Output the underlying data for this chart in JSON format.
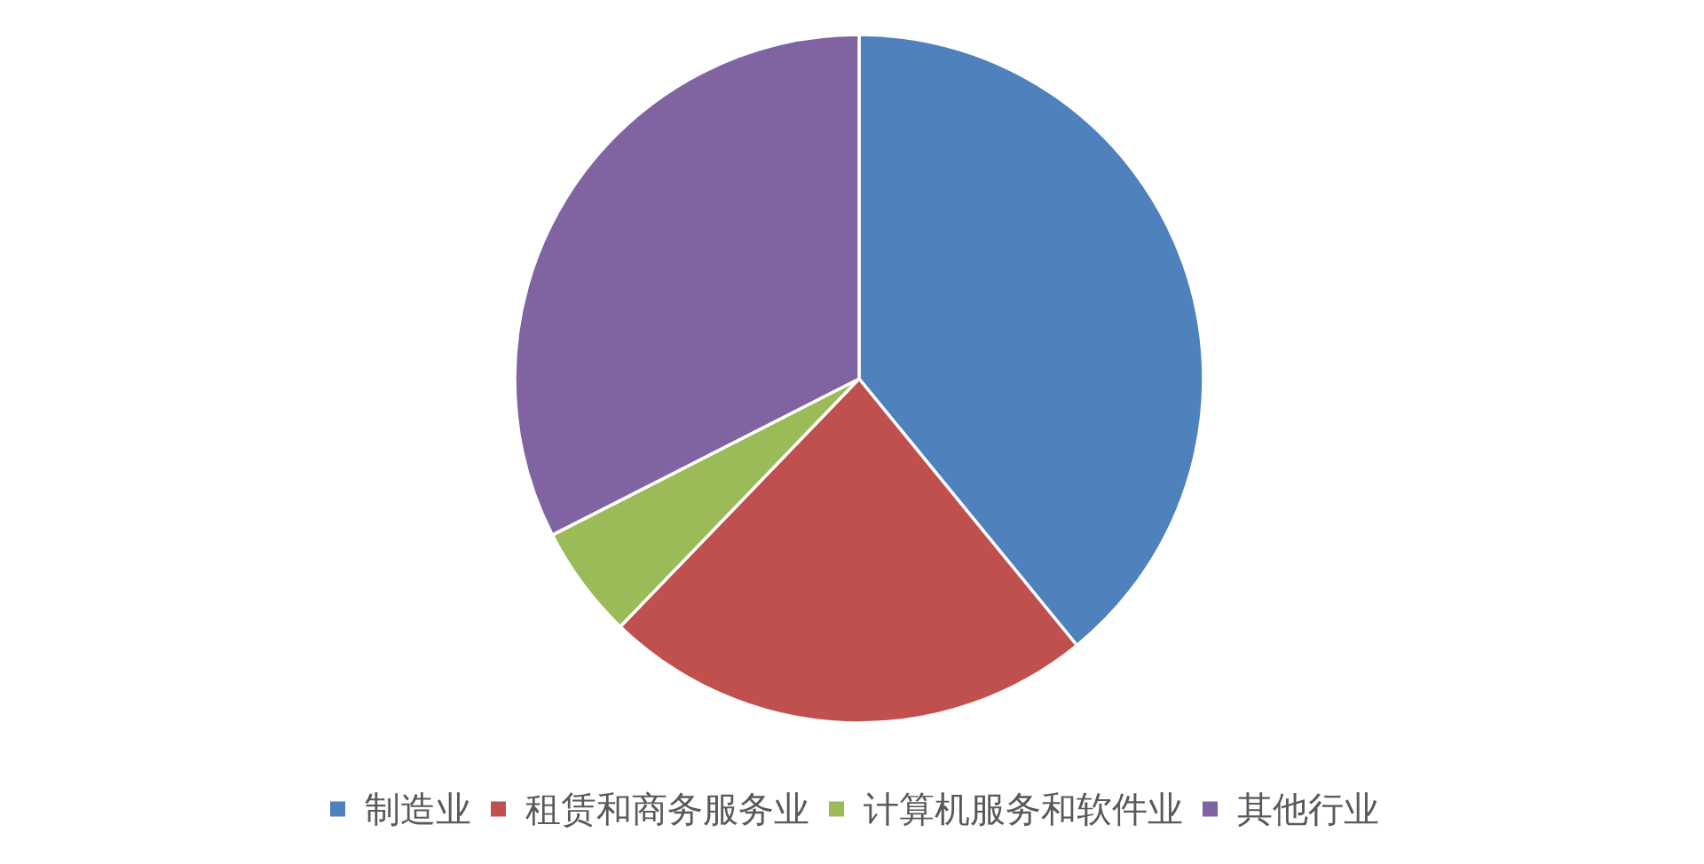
{
  "chart_data": {
    "type": "pie",
    "categories": [
      "制造业",
      "租赁和商务服务业",
      "计算机服务和软件业",
      "其他行业"
    ],
    "values": [
      39.1,
      23.1,
      5.3,
      32.5
    ],
    "colors": [
      "#4f81bd",
      "#c0504d",
      "#9bbb59",
      "#8064a2"
    ],
    "legend": "bottom"
  }
}
